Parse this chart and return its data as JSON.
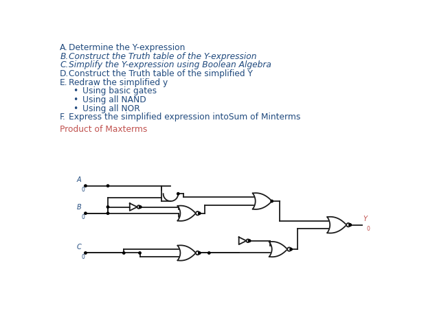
{
  "bg_color": "#FFFFFF",
  "blue": "#1F497D",
  "orange": "#C0504D",
  "gate_color": "#1A1A1A",
  "wire_color": "#1A1A1A",
  "gate_lw": 1.3,
  "wire_lw": 1.3,
  "dot_r": 2.2,
  "text_lines": [
    {
      "prefix": "A.",
      "italic": false,
      "text": "Determine the Y-expression",
      "sub": false
    },
    {
      "prefix": "B.",
      "italic": true,
      "text": "Construct the Truth table of the Y-expression",
      "sub": false
    },
    {
      "prefix": "C.",
      "italic": true,
      "text": "Simplify the Y-expression using Boolean Algebra",
      "sub": false
    },
    {
      "prefix": "D.",
      "italic": false,
      "text": "Construct the Truth table of the simplified Y",
      "sub": false
    },
    {
      "prefix": "E.",
      "italic": false,
      "text": "Redraw the simplified y",
      "sub": false
    },
    {
      "prefix": "•",
      "italic": false,
      "text": "Using basic gates",
      "sub": true
    },
    {
      "prefix": "•",
      "italic": false,
      "text": "Using all NAND",
      "sub": true
    },
    {
      "prefix": "•",
      "italic": false,
      "text": "Using all NOR",
      "sub": true
    },
    {
      "prefix": "F.",
      "italic": false,
      "text": "Express the simplified expression intoSum of Minterms",
      "sub": false
    }
  ],
  "product_text": "Product of Maxterms",
  "input_labels": [
    "A",
    "B",
    "C"
  ],
  "output_label": "Y"
}
